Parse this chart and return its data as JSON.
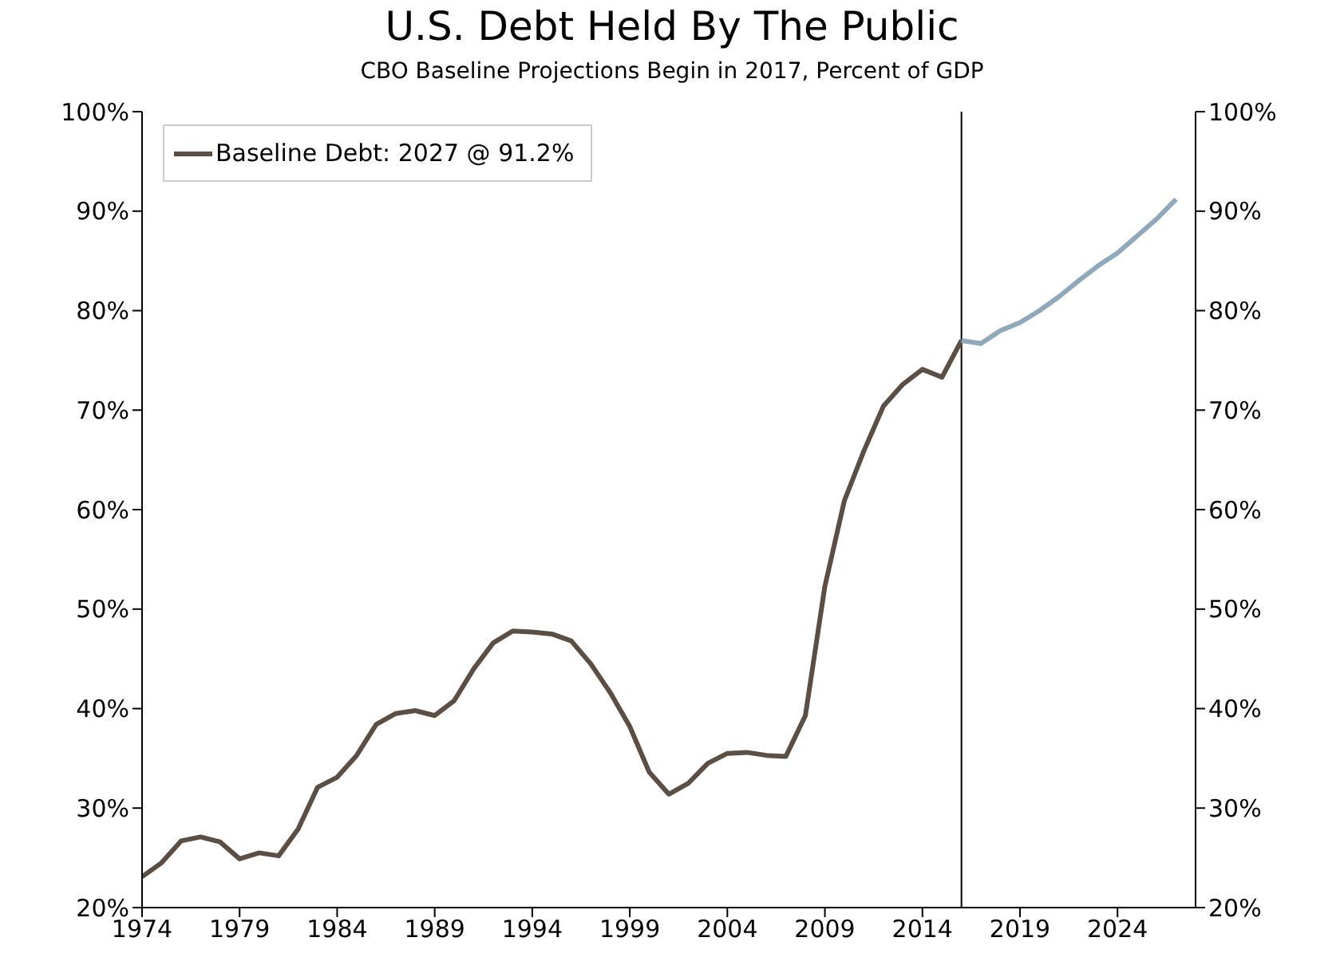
{
  "chart_data": {
    "type": "line",
    "title": "U.S. Debt Held By The Public",
    "subtitle": "CBO Baseline Projections Begin in 2017, Percent of GDP",
    "series": [
      {
        "name": "Baseline Debt: 2027 @ 91.2%",
        "color": "#5b4e44",
        "x": [
          1974,
          1975,
          1976,
          1977,
          1978,
          1979,
          1980,
          1981,
          1982,
          1983,
          1984,
          1985,
          1986,
          1987,
          1988,
          1989,
          1990,
          1991,
          1992,
          1993,
          1994,
          1995,
          1996,
          1997,
          1998,
          1999,
          2000,
          2001,
          2002,
          2003,
          2004,
          2005,
          2006,
          2007,
          2008,
          2009,
          2010,
          2011,
          2012,
          2013,
          2014,
          2015,
          2016
        ],
        "values": [
          23.1,
          24.5,
          26.7,
          27.1,
          26.6,
          24.9,
          25.5,
          25.2,
          27.9,
          32.1,
          33.1,
          35.3,
          38.4,
          39.5,
          39.8,
          39.3,
          40.8,
          44.0,
          46.6,
          47.8,
          47.7,
          47.5,
          46.8,
          44.5,
          41.6,
          38.2,
          33.6,
          31.4,
          32.5,
          34.5,
          35.5,
          35.6,
          35.3,
          35.2,
          39.3,
          52.3,
          60.9,
          65.9,
          70.4,
          72.6,
          74.1,
          73.3,
          77.0
        ]
      },
      {
        "color": "#8fa9bb",
        "x": [
          2016,
          2017,
          2018,
          2019,
          2020,
          2021,
          2022,
          2023,
          2024,
          2025,
          2026,
          2027
        ],
        "values": [
          77.0,
          76.7,
          78.0,
          78.8,
          80.0,
          81.4,
          83.0,
          84.5,
          85.8,
          87.5,
          89.2,
          91.2
        ]
      }
    ],
    "xlim": [
      1974,
      2028
    ],
    "xticks": [
      1974,
      1979,
      1984,
      1989,
      1994,
      1999,
      2004,
      2009,
      2014,
      2019,
      2024
    ],
    "ylim": [
      20,
      100
    ],
    "yticks": [
      {
        "value": 20,
        "label": "20%"
      },
      {
        "value": 30,
        "label": "30%"
      },
      {
        "value": 40,
        "label": "40%"
      },
      {
        "value": 50,
        "label": "50%"
      },
      {
        "value": 60,
        "label": "60%"
      },
      {
        "value": 70,
        "label": "70%"
      },
      {
        "value": 80,
        "label": "80%"
      },
      {
        "value": 90,
        "label": "90%"
      },
      {
        "value": 100,
        "label": "100%"
      }
    ],
    "y2lim": [
      20,
      100
    ],
    "y2ticks": [
      {
        "value": 20,
        "label": "20%"
      },
      {
        "value": 30,
        "label": "30%"
      },
      {
        "value": 40,
        "label": "40%"
      },
      {
        "value": 50,
        "label": "50%"
      },
      {
        "value": 60,
        "label": "60%"
      },
      {
        "value": 70,
        "label": "70%"
      },
      {
        "value": 80,
        "label": "80%"
      },
      {
        "value": 90,
        "label": "90%"
      },
      {
        "value": 100,
        "label": "100%"
      }
    ],
    "ref_lines": [
      {
        "axis": "x",
        "value": 2016,
        "color": "#000000"
      }
    ],
    "grid": false,
    "legend": "top left",
    "marker": "none",
    "line_style": "solid"
  }
}
